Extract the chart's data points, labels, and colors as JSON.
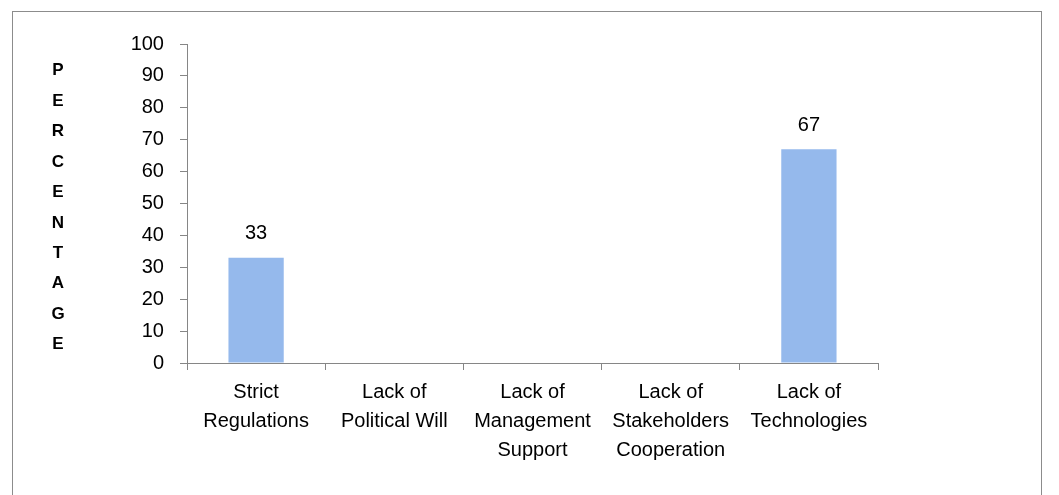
{
  "chart_data": {
    "type": "bar",
    "categories": [
      "Strict Regulations",
      "Lack of Political Will",
      "Lack of Management Support",
      "Lack of Stakeholders Cooperation",
      "Lack of Technologies"
    ],
    "values": [
      33,
      0,
      0,
      0,
      67
    ],
    "value_labels": [
      "33",
      null,
      null,
      null,
      "67"
    ],
    "color": "#95b9ec",
    "ylabel": "PERCENTAGE",
    "ylim": [
      0,
      100
    ],
    "yticks": [
      0,
      10,
      20,
      30,
      40,
      50,
      60,
      70,
      80,
      90,
      100
    ],
    "grid": false
  }
}
